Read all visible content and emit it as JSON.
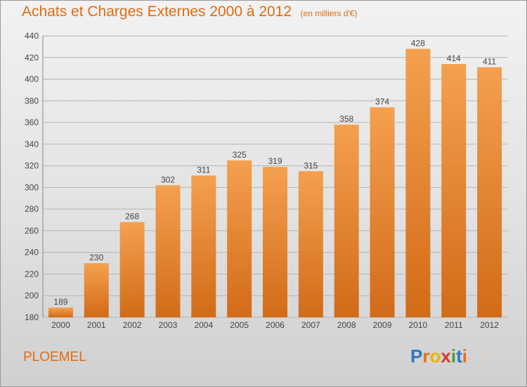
{
  "title": "Achats et Charges Externes 2000 à 2012",
  "unit": "(en milliers d'€)",
  "commune": "PLOEMEL",
  "logo": {
    "text": "Proxiti",
    "letters": [
      {
        "char": "P",
        "color": "#2e73c8"
      },
      {
        "char": "r",
        "color": "#e8701a"
      },
      {
        "char": "o",
        "color": "#f0b400"
      },
      {
        "char": "x",
        "color": "#d63a2a"
      },
      {
        "char": "i",
        "color": "#3aa43a"
      },
      {
        "char": "t",
        "color": "#2e73c8"
      },
      {
        "char": "i",
        "color": "#e8701a"
      }
    ]
  },
  "colors": {
    "title": "#e26b10",
    "bar_top": "#f4a04f",
    "bar_bottom": "#d26b17",
    "grid": "#b4b4b4",
    "axis_text": "#444444"
  },
  "chart_data": {
    "type": "bar",
    "categories": [
      "2000",
      "2001",
      "2002",
      "2003",
      "2004",
      "2005",
      "2006",
      "2007",
      "2008",
      "2009",
      "2010",
      "2011",
      "2012"
    ],
    "values": [
      189,
      230,
      268,
      302,
      311,
      325,
      319,
      315,
      358,
      374,
      428,
      414,
      411
    ],
    "ylim": [
      180,
      440
    ],
    "yticks": [
      180,
      200,
      220,
      240,
      260,
      280,
      300,
      320,
      340,
      360,
      380,
      400,
      420,
      440
    ],
    "grid": true,
    "data_labels": true
  }
}
